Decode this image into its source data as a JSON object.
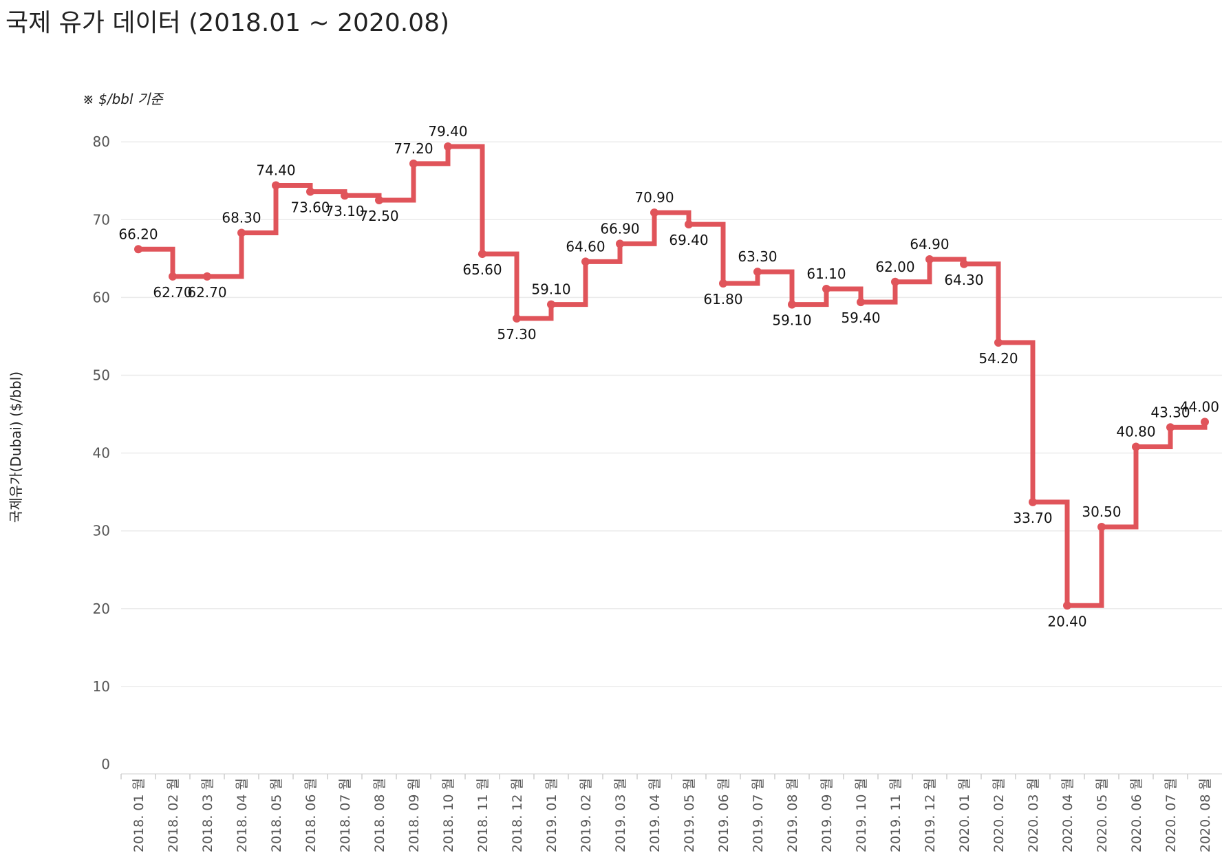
{
  "title": "국제 유가 데이터 (2018.01 ~ 2020.08)",
  "note": "※ $/bbl 기준",
  "colors": {
    "line": "#e0545a",
    "grid": "#ebebeb",
    "axis_text": "#555555",
    "label_text": "#111111"
  },
  "chart_data": {
    "type": "line",
    "line_shape": "step",
    "categories": [
      "2018. 01 월",
      "2018. 02 월",
      "2018. 03 월",
      "2018. 04 월",
      "2018. 05 월",
      "2018. 06 월",
      "2018. 07 월",
      "2018. 08 월",
      "2018. 09 월",
      "2018. 10 월",
      "2018. 11 월",
      "2018. 12 월",
      "2019. 01 월",
      "2019. 02 월",
      "2019. 03 월",
      "2019. 04 월",
      "2019. 05 월",
      "2019. 06 월",
      "2019. 07 월",
      "2019. 08 월",
      "2019. 09 월",
      "2019. 10 월",
      "2019. 11 월",
      "2019. 12 월",
      "2020. 01 월",
      "2020. 02 월",
      "2020. 03 월",
      "2020. 04 월",
      "2020. 05 월",
      "2020. 06 월",
      "2020. 07 월",
      "2020. 08 월"
    ],
    "values": [
      66.2,
      62.7,
      62.7,
      68.3,
      74.4,
      73.6,
      73.1,
      72.5,
      77.2,
      79.4,
      65.6,
      57.3,
      59.1,
      64.6,
      66.9,
      70.9,
      69.4,
      61.8,
      63.3,
      59.1,
      61.1,
      59.4,
      62.0,
      64.9,
      64.3,
      54.2,
      33.7,
      20.4,
      30.5,
      40.8,
      43.3,
      44.0
    ],
    "data_labels": [
      "66.20",
      "62.70",
      "62.70",
      "68.30",
      "74.40",
      "73.60",
      "73.10",
      "72.50",
      "77.20",
      "79.40",
      "65.60",
      "57.30",
      "59.10",
      "64.60",
      "66.90",
      "70.90",
      "69.40",
      "61.80",
      "63.30",
      "59.10",
      "61.10",
      "59.40",
      "62.00",
      "64.90",
      "64.30",
      "54.20",
      "33.70",
      "20.40",
      "30.50",
      "40.80",
      "43.30",
      "44.00"
    ],
    "ylabel": "국제유가(Dubai) ($/bbl)",
    "xlabel": "",
    "ylim": [
      0,
      80
    ],
    "yticks": [
      0,
      10,
      20,
      30,
      40,
      50,
      60,
      70,
      80
    ],
    "grid": true,
    "legend": "none"
  }
}
